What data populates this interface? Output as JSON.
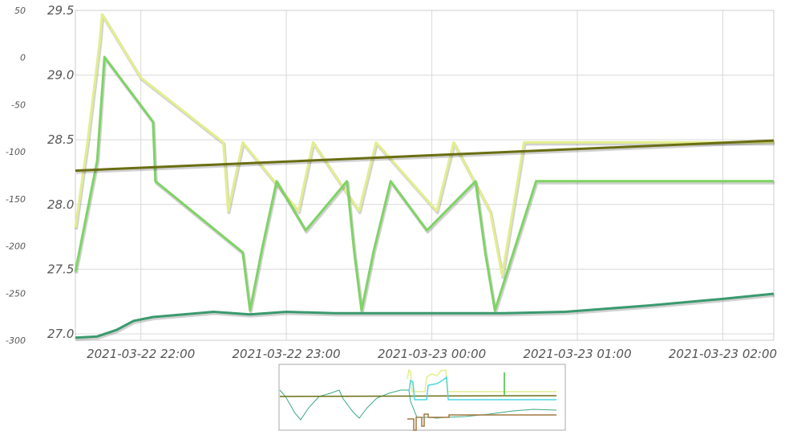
{
  "chart_data": {
    "type": "line",
    "left_axis": {
      "ticks": [
        "50",
        "0",
        "-50",
        "-100",
        "-150",
        "-200",
        "-250",
        "-300"
      ],
      "range": [
        -300,
        50
      ]
    },
    "right_axis": {
      "ticks": [
        "29.5",
        "29.0",
        "28.5",
        "28.0",
        "27.5",
        "27.0"
      ],
      "range": [
        26.95,
        29.5
      ]
    },
    "x_axis": {
      "ticks": [
        "2021-03-22 22:00",
        "2021-03-22 23:00",
        "2021-03-23 00:00",
        "2021-03-23 01:00",
        "2021-03-23 02:00"
      ],
      "range": [
        "2021-03-22 21:33",
        "2021-03-23 02:21"
      ]
    },
    "grid": true,
    "series": [
      {
        "color": "#e3ee8e",
        "axis": "right",
        "points": [
          [
            "21:33",
            27.82
          ],
          [
            "21:38",
            28.48
          ],
          [
            "21:43",
            29.25
          ],
          [
            "21:44",
            29.47
          ],
          [
            "22:00",
            28.98
          ],
          [
            "22:34",
            28.48
          ],
          [
            "22:36",
            27.95
          ],
          [
            "22:42",
            28.48
          ],
          [
            "23:05",
            27.95
          ],
          [
            "23:11",
            28.48
          ],
          [
            "23:30",
            27.95
          ],
          [
            "23:37",
            28.48
          ],
          [
            "00:02",
            27.95
          ],
          [
            "00:09",
            28.48
          ],
          [
            "00:24",
            27.95
          ],
          [
            "00:29",
            27.45
          ],
          [
            "00:38",
            28.48
          ],
          [
            "02:21",
            28.48
          ]
        ]
      },
      {
        "color": "#7fd364",
        "axis": "right",
        "points": [
          [
            "21:33",
            27.48
          ],
          [
            "21:42",
            28.34
          ],
          [
            "21:45",
            29.14
          ],
          [
            "22:05",
            28.64
          ],
          [
            "22:06",
            28.18
          ],
          [
            "22:42",
            27.63
          ],
          [
            "22:45",
            27.18
          ],
          [
            "22:50",
            27.66
          ],
          [
            "22:56",
            28.18
          ],
          [
            "23:08",
            27.8
          ],
          [
            "23:25",
            28.18
          ],
          [
            "23:28",
            27.63
          ],
          [
            "23:31",
            27.18
          ],
          [
            "23:36",
            27.64
          ],
          [
            "23:43",
            28.18
          ],
          [
            "23:58",
            27.8
          ],
          [
            "00:18",
            28.18
          ],
          [
            "00:22",
            27.63
          ],
          [
            "00:26",
            27.18
          ],
          [
            "00:43",
            28.18
          ],
          [
            "02:21",
            28.18
          ]
        ]
      },
      {
        "color": "#3a9a6e",
        "axis": "right",
        "points": [
          [
            "21:33",
            26.97
          ],
          [
            "21:42",
            26.98
          ],
          [
            "21:50",
            27.03
          ],
          [
            "21:57",
            27.1
          ],
          [
            "22:05",
            27.13
          ],
          [
            "22:30",
            27.17
          ],
          [
            "22:45",
            27.15
          ],
          [
            "23:00",
            27.17
          ],
          [
            "23:20",
            27.16
          ],
          [
            "23:40",
            27.16
          ],
          [
            "00:00",
            27.16
          ],
          [
            "00:30",
            27.16
          ],
          [
            "00:55",
            27.17
          ],
          [
            "01:30",
            27.22
          ],
          [
            "02:00",
            27.27
          ],
          [
            "02:21",
            27.31
          ]
        ]
      },
      {
        "color": "#6a6e12",
        "axis": "left",
        "points": [
          [
            "21:33",
            -120
          ],
          [
            "02:21",
            -88
          ]
        ]
      }
    ]
  }
}
